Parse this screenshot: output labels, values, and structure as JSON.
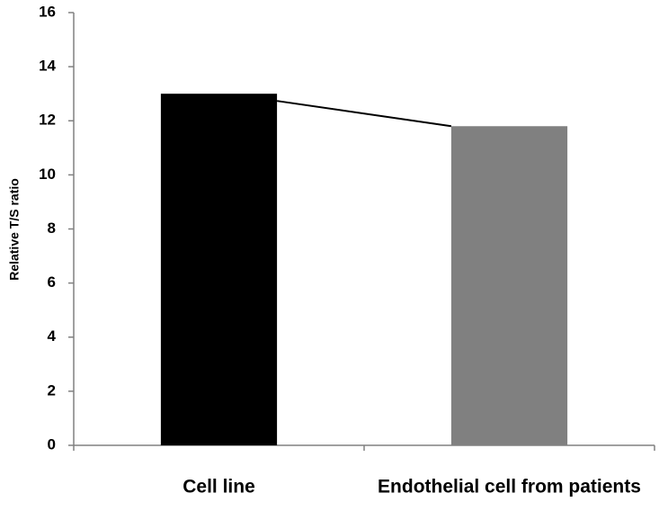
{
  "chart_data": {
    "type": "bar",
    "y_label": "Relative T/S ratio",
    "categories": [
      "Cell line",
      "Endothelial cell from patients"
    ],
    "values": [
      13,
      11.8
    ],
    "colors": [
      "#000000",
      "#808080"
    ],
    "ylim": [
      0,
      16
    ],
    "yticks": [
      0,
      2,
      4,
      6,
      8,
      10,
      12,
      14,
      16
    ],
    "grid": false
  }
}
